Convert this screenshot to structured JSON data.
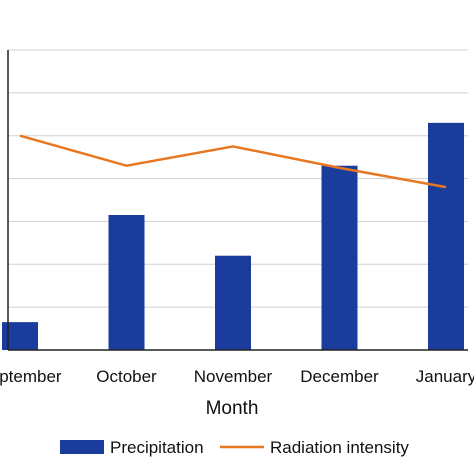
{
  "chart_data": {
    "type": "bar",
    "categories": [
      "September",
      "October",
      "November",
      "December",
      "January"
    ],
    "xlabel": "Month",
    "ylabel": "",
    "grid": true,
    "legend_position": "bottom",
    "ylim": [
      0,
      7
    ],
    "series": [
      {
        "name": "Precipitation",
        "type": "bar",
        "color": "#1a3c9c",
        "values": [
          0.65,
          3.15,
          2.2,
          4.3,
          5.3
        ]
      },
      {
        "name": "Radiation intensity",
        "type": "line",
        "color": "#e87722",
        "values": [
          5.0,
          4.3,
          4.75,
          4.25,
          3.8
        ]
      }
    ]
  }
}
